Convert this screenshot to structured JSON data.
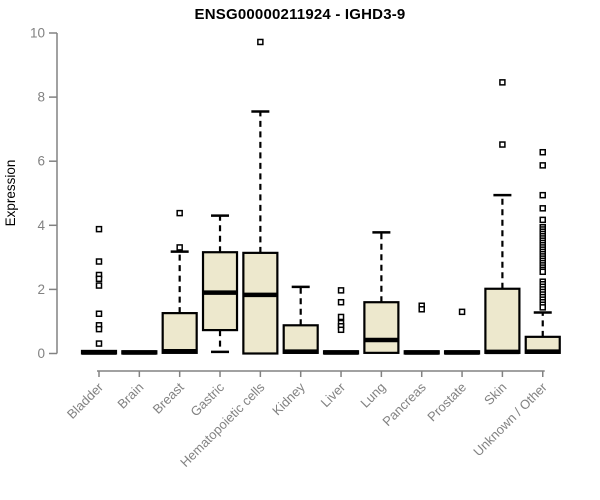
{
  "chart_data": {
    "type": "boxplot",
    "title": "ENSG00000211924 - IGHD3-9",
    "xlabel": "",
    "ylabel": "Expression",
    "ylim": [
      0,
      10
    ],
    "yticks": [
      0,
      2,
      4,
      6,
      8,
      10
    ],
    "grid": false,
    "legend": "none",
    "axis_color": "#828282",
    "box_fill": "#ede8cd",
    "box_stroke": "#000000",
    "categories": [
      "Bladder",
      "Brain",
      "Breast",
      "Gastric",
      "Hematopoietic cells",
      "Kidney",
      "Liver",
      "Lung",
      "Pancreas",
      "Prostate",
      "Skin",
      "Unknown / Other"
    ],
    "series": [
      {
        "name": "Bladder",
        "whisker_low": 0,
        "q1": 0,
        "median": 0.03,
        "q3": 0.08,
        "whisker_high": 0.08,
        "outliers": [
          3.88,
          2.87,
          2.45,
          2.33,
          2.12,
          1.24,
          0.88,
          0.76,
          0.31
        ]
      },
      {
        "name": "Brain",
        "whisker_low": 0,
        "q1": 0,
        "median": 0.03,
        "q3": 0.07,
        "whisker_high": 0.07,
        "outliers": []
      },
      {
        "name": "Breast",
        "whisker_low": 0.02,
        "q1": 0.02,
        "median": 0.07,
        "q3": 1.26,
        "whisker_high": 3.18,
        "outliers": [
          4.38,
          3.31
        ]
      },
      {
        "name": "Gastric",
        "whisker_low": 0.05,
        "q1": 0.73,
        "median": 1.9,
        "q3": 3.16,
        "whisker_high": 4.3,
        "outliers": []
      },
      {
        "name": "Hematopoietic cells",
        "whisker_low": 0,
        "q1": 0,
        "median": 1.83,
        "q3": 3.14,
        "whisker_high": 7.55,
        "outliers": [
          9.72
        ]
      },
      {
        "name": "Kidney",
        "whisker_low": 0.02,
        "q1": 0.02,
        "median": 0.06,
        "q3": 0.88,
        "whisker_high": 2.08,
        "outliers": []
      },
      {
        "name": "Liver",
        "whisker_low": 0,
        "q1": 0,
        "median": 0.03,
        "q3": 0.07,
        "whisker_high": 0.07,
        "outliers": [
          1.97,
          1.6,
          1.14,
          0.95,
          0.85,
          0.74
        ]
      },
      {
        "name": "Lung",
        "whisker_low": 0.02,
        "q1": 0.02,
        "median": 0.42,
        "q3": 1.6,
        "whisker_high": 3.78,
        "outliers": []
      },
      {
        "name": "Pancreas",
        "whisker_low": 0,
        "q1": 0,
        "median": 0.03,
        "q3": 0.07,
        "whisker_high": 0.07,
        "outliers": [
          1.49,
          1.38
        ]
      },
      {
        "name": "Prostate",
        "whisker_low": 0,
        "q1": 0,
        "median": 0.03,
        "q3": 0.07,
        "whisker_high": 0.07,
        "outliers": [
          1.3
        ]
      },
      {
        "name": "Skin",
        "whisker_low": 0.02,
        "q1": 0.02,
        "median": 0.05,
        "q3": 2.02,
        "whisker_high": 4.94,
        "outliers": [
          8.46,
          6.52
        ]
      },
      {
        "name": "Unknown / Other",
        "whisker_low": 0,
        "q1": 0.02,
        "median": 0.06,
        "q3": 0.52,
        "whisker_high": 1.28,
        "outliers": [
          6.28,
          5.87,
          4.94,
          4.53,
          4.17,
          3.94,
          3.87,
          3.8,
          3.73,
          3.66,
          3.59,
          3.52,
          3.45,
          3.38,
          3.31,
          3.24,
          3.17,
          3.1,
          3.03,
          2.96,
          2.89,
          2.82,
          2.75,
          2.68,
          2.61,
          2.55,
          2.24,
          2.16,
          2.08,
          2.0,
          1.92,
          1.84,
          1.76,
          1.68,
          1.6,
          1.52,
          1.44
        ]
      }
    ]
  }
}
